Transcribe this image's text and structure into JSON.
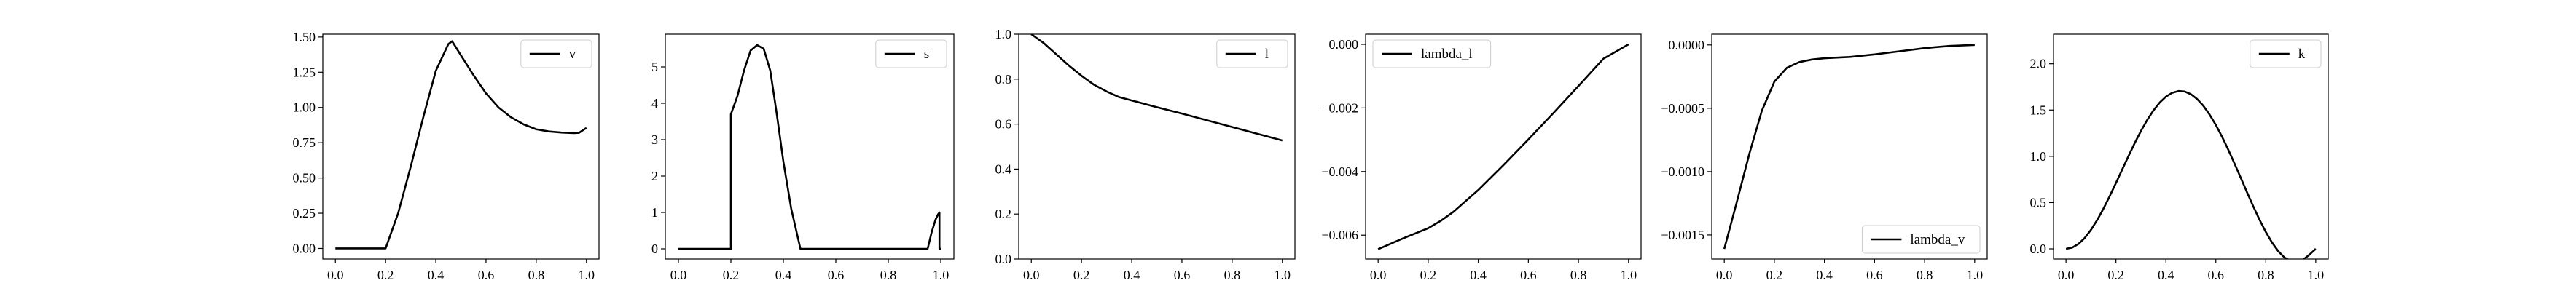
{
  "chart_data": [
    {
      "type": "line",
      "legend_loc": "upper right",
      "series": [
        {
          "name": "v",
          "color": "#000000",
          "x": [
            0.0,
            0.05,
            0.1,
            0.15,
            0.2,
            0.25,
            0.3,
            0.35,
            0.4,
            0.45,
            0.465,
            0.5,
            0.55,
            0.6,
            0.65,
            0.7,
            0.75,
            0.8,
            0.85,
            0.9,
            0.95,
            0.97,
            1.0
          ],
          "y": [
            0.0,
            0.0,
            0.0,
            0.0,
            0.0,
            0.25,
            0.58,
            0.93,
            1.26,
            1.45,
            1.47,
            1.37,
            1.23,
            1.1,
            1.0,
            0.93,
            0.88,
            0.845,
            0.83,
            0.822,
            0.818,
            0.82,
            0.855
          ]
        }
      ],
      "xlim": [
        -0.05,
        1.05
      ],
      "ylim": [
        -0.075,
        1.52
      ],
      "xticks": [
        0.0,
        0.2,
        0.4,
        0.6,
        0.8,
        1.0
      ],
      "xtick_labels": [
        "0.0",
        "0.2",
        "0.4",
        "0.6",
        "0.8",
        "1.0"
      ],
      "yticks": [
        0.0,
        0.25,
        0.5,
        0.75,
        1.0,
        1.25,
        1.5
      ],
      "ytick_labels": [
        "0.00",
        "0.25",
        "0.50",
        "0.75",
        "1.00",
        "1.25",
        "1.50"
      ]
    },
    {
      "type": "line",
      "legend_loc": "upper right",
      "series": [
        {
          "name": "s",
          "color": "#000000",
          "x": [
            0.0,
            0.1,
            0.2,
            0.2,
            0.225,
            0.25,
            0.275,
            0.3,
            0.325,
            0.35,
            0.375,
            0.4,
            0.43,
            0.465,
            0.465,
            0.6,
            0.8,
            0.95,
            0.965,
            0.98,
            0.99,
            0.995,
            0.995,
            1.0
          ],
          "y": [
            0.0,
            0.0,
            0.0,
            3.7,
            4.2,
            4.9,
            5.45,
            5.6,
            5.5,
            4.9,
            3.7,
            2.4,
            1.1,
            0.0,
            0.0,
            0.0,
            0.0,
            0.0,
            0.45,
            0.8,
            0.95,
            1.0,
            0.0,
            0.0
          ]
        }
      ],
      "xlim": [
        -0.05,
        1.05
      ],
      "ylim": [
        -0.28,
        5.9
      ],
      "xticks": [
        0.0,
        0.2,
        0.4,
        0.6,
        0.8,
        1.0
      ],
      "xtick_labels": [
        "0.0",
        "0.2",
        "0.4",
        "0.6",
        "0.8",
        "1.0"
      ],
      "yticks": [
        0,
        1,
        2,
        3,
        4,
        5
      ],
      "ytick_labels": [
        "0",
        "1",
        "2",
        "3",
        "4",
        "5"
      ]
    },
    {
      "type": "line",
      "legend_loc": "upper right",
      "series": [
        {
          "name": "l",
          "color": "#000000",
          "x": [
            0.0,
            0.05,
            0.1,
            0.15,
            0.2,
            0.25,
            0.3,
            0.35,
            0.4,
            0.5,
            0.6,
            0.7,
            0.8,
            0.9,
            1.0
          ],
          "y": [
            1.0,
            0.96,
            0.91,
            0.86,
            0.815,
            0.775,
            0.745,
            0.72,
            0.705,
            0.675,
            0.647,
            0.617,
            0.587,
            0.557,
            0.527
          ]
        }
      ],
      "xlim": [
        -0.05,
        1.05
      ],
      "ylim": [
        0.0,
        1.0
      ],
      "xticks": [
        0.0,
        0.2,
        0.4,
        0.6,
        0.8,
        1.0
      ],
      "xtick_labels": [
        "0.0",
        "0.2",
        "0.4",
        "0.6",
        "0.8",
        "1.0"
      ],
      "yticks": [
        0.0,
        0.2,
        0.4,
        0.6,
        0.8,
        1.0
      ],
      "ytick_labels": [
        "0.0",
        "0.2",
        "0.4",
        "0.6",
        "0.8",
        "1.0"
      ]
    },
    {
      "type": "line",
      "legend_loc": "upper left",
      "series": [
        {
          "name": "lambda_l",
          "color": "#000000",
          "x": [
            0.0,
            0.1,
            0.2,
            0.25,
            0.3,
            0.4,
            0.5,
            0.6,
            0.7,
            0.8,
            0.9,
            1.0
          ],
          "y": [
            -0.00644,
            -0.0061,
            -0.00578,
            -0.00555,
            -0.00527,
            -0.00458,
            -0.0038,
            -0.00299,
            -0.00216,
            -0.00131,
            -0.00045,
            0.0
          ]
        }
      ],
      "xlim": [
        -0.05,
        1.05
      ],
      "ylim": [
        -0.00675,
        0.00032
      ],
      "xticks": [
        0.0,
        0.2,
        0.4,
        0.6,
        0.8,
        1.0
      ],
      "xtick_labels": [
        "0.0",
        "0.2",
        "0.4",
        "0.6",
        "0.8",
        "1.0"
      ],
      "yticks": [
        0.0,
        -0.002,
        -0.004,
        -0.006
      ],
      "ytick_labels": [
        "0.000",
        "−0.002",
        "−0.004",
        "−0.006"
      ]
    },
    {
      "type": "line",
      "legend_loc": "lower right",
      "series": [
        {
          "name": "lambda_v",
          "color": "#000000",
          "x": [
            0.0,
            0.05,
            0.1,
            0.15,
            0.2,
            0.25,
            0.3,
            0.35,
            0.4,
            0.45,
            0.5,
            0.6,
            0.7,
            0.8,
            0.9,
            1.0
          ],
          "y": [
            -0.00161,
            -0.00124,
            -0.00086,
            -0.00052,
            -0.00029,
            -0.00018,
            -0.000135,
            -0.000115,
            -0.000105,
            -0.0001,
            -9.5e-05,
            -7.5e-05,
            -5e-05,
            -2.5e-05,
            -8e-06,
            0.0
          ]
        }
      ],
      "xlim": [
        -0.05,
        1.05
      ],
      "ylim": [
        -0.00169,
        8.5e-05
      ],
      "xticks": [
        0.0,
        0.2,
        0.4,
        0.6,
        0.8,
        1.0
      ],
      "xtick_labels": [
        "0.0",
        "0.2",
        "0.4",
        "0.6",
        "0.8",
        "1.0"
      ],
      "yticks": [
        0.0,
        -0.0005,
        -0.001,
        -0.0015
      ],
      "ytick_labels": [
        "0.0000",
        "−0.0005",
        "−0.0010",
        "−0.0015"
      ]
    },
    {
      "type": "line",
      "legend_loc": "upper right",
      "series": [
        {
          "name": "k",
          "color": "#000000",
          "x": [
            0.0,
            0.025,
            0.05,
            0.075,
            0.1,
            0.125,
            0.15,
            0.175,
            0.2,
            0.225,
            0.25,
            0.275,
            0.3,
            0.325,
            0.35,
            0.375,
            0.4,
            0.425,
            0.45,
            0.475,
            0.5,
            0.525,
            0.55,
            0.575,
            0.6,
            0.625,
            0.65,
            0.675,
            0.7,
            0.725,
            0.75,
            0.775,
            0.8,
            0.825,
            0.85,
            0.875,
            0.9,
            0.925,
            0.95,
            0.975,
            1.0
          ],
          "y": [
            0.0,
            0.0134,
            0.053,
            0.118,
            0.2052,
            0.3121,
            0.4349,
            0.5694,
            0.7115,
            0.857,
            1.0017,
            1.1417,
            1.2729,
            1.3918,
            1.4951,
            1.58,
            1.6443,
            1.6863,
            1.705,
            1.7,
            1.6712,
            1.6192,
            1.5451,
            1.4508,
            1.3383,
            1.2102,
            1.0697,
            0.9202,
            0.7656,
            0.6101,
            0.4582,
            0.3142,
            0.1826,
            0.0679,
            -0.0259,
            -0.0944,
            -0.1336,
            -0.141,
            -0.1162,
            -0.0623,
            0.0
          ]
        }
      ],
      "xlim": [
        -0.05,
        1.05
      ],
      "ylim": [
        -0.11,
        2.32
      ],
      "xticks": [
        0.0,
        0.2,
        0.4,
        0.6,
        0.8,
        1.0
      ],
      "xtick_labels": [
        "0.0",
        "0.2",
        "0.4",
        "0.6",
        "0.8",
        "1.0"
      ],
      "yticks": [
        0.0,
        0.5,
        1.0,
        1.5,
        2.0
      ],
      "ytick_labels": [
        "0.0",
        "0.5",
        "1.0",
        "1.5",
        "2.0"
      ]
    }
  ]
}
